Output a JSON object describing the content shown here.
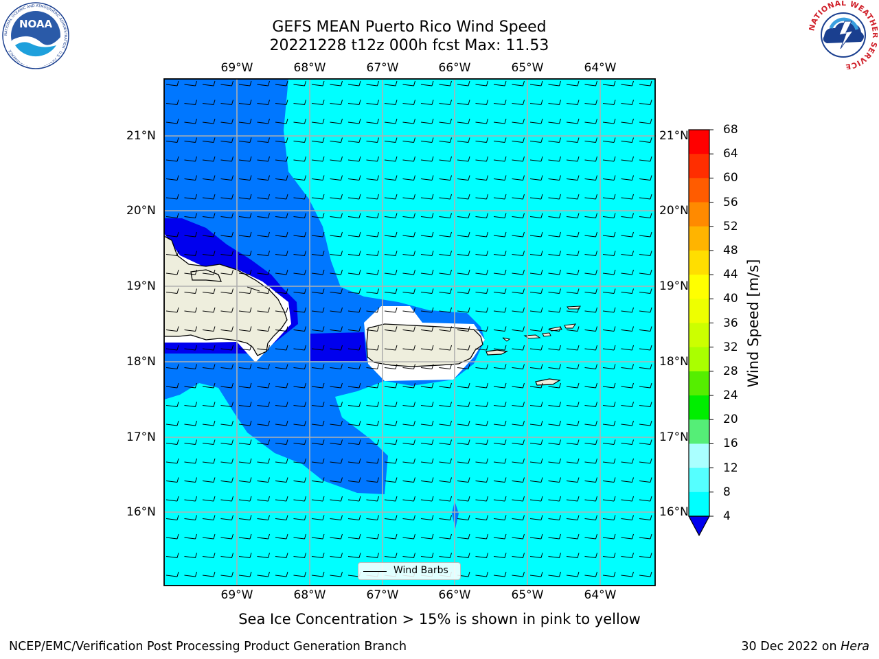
{
  "header": {
    "title_line1": "GEFS MEAN Puerto Rico Wind Speed",
    "title_line2": "20221228 t12z 000h fcst   Max: 11.53"
  },
  "map": {
    "lon_labels": [
      "69°W",
      "68°W",
      "67°W",
      "66°W",
      "65°W",
      "64°W"
    ],
    "lat_labels": [
      "21°N",
      "20°N",
      "19°N",
      "18°N",
      "17°N",
      "16°N"
    ],
    "legend_label": "Wind Barbs",
    "colors": {
      "below_4": "#0000ee",
      "band_4_8": "#0077ff",
      "band_8_12": "#00ffff",
      "land": "#eeeedd",
      "gridline": "#b0b0b0"
    }
  },
  "colorbar": {
    "title": "Wind Speed [m/s]",
    "ticks": [
      "68",
      "64",
      "60",
      "56",
      "52",
      "48",
      "44",
      "40",
      "36",
      "32",
      "28",
      "24",
      "20",
      "16",
      "12",
      "8",
      "4"
    ],
    "colors": [
      "#ff0000",
      "#ff2e00",
      "#ff5c00",
      "#ff8a00",
      "#ffb400",
      "#ffde00",
      "#ffff00",
      "#eeff00",
      "#ccff00",
      "#aaff00",
      "#55ee00",
      "#00ee00",
      "#55ee77",
      "#aaffff",
      "#55ffff",
      "#00ffff",
      "#0077ff",
      "#0000ee"
    ]
  },
  "footer": {
    "note": "Sea Ice Concentration > 15% is shown in pink to yellow",
    "left": "NCEP/EMC/Verification Post Processing Product Generation Branch",
    "right_date": "30 Dec 2022 on ",
    "right_host": "Hera"
  },
  "logos": {
    "noaa_text": "NOAA",
    "noaa_ring": "NATIONAL OCEANIC AND ATMOSPHERIC ADMINISTRATION · U.S. DEPARTMENT OF COMMERCE",
    "nws_ring": "NATIONAL WEATHER SERVICE"
  }
}
